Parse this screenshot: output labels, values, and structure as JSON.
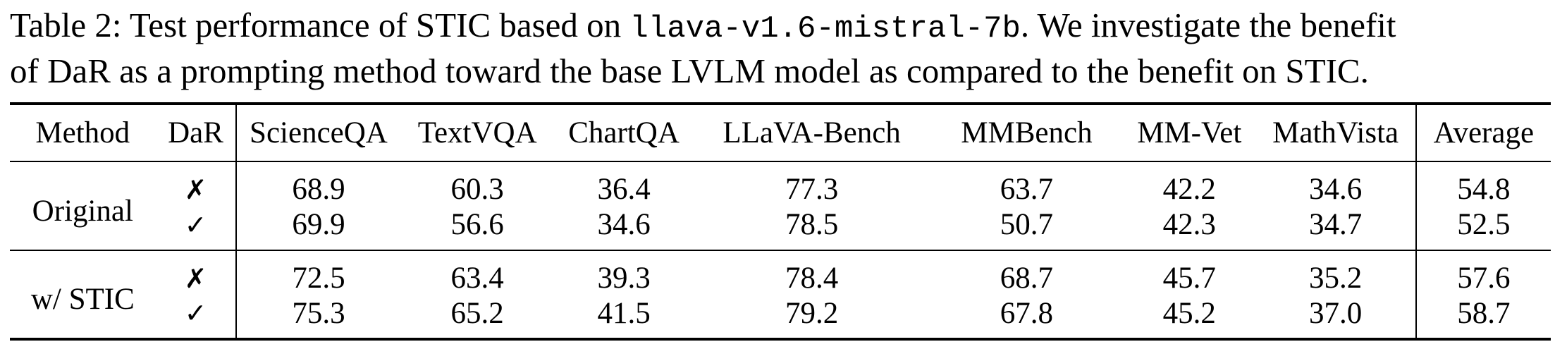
{
  "caption": {
    "label": "Table 2:",
    "text_before_model": " Test performance of STIC based on ",
    "model_name": "llava-v1.6-mistral-7b",
    "text_line1_end": ". We investigate the benefit",
    "text_line2": "of DaR as a prompting method toward the base LVLM model as compared to the benefit on STIC."
  },
  "table": {
    "headers": {
      "method": "Method",
      "dar": "DaR",
      "scienceqa": "ScienceQA",
      "textvqa": "TextVQA",
      "chartqa": "ChartQA",
      "llava_bench": "LLaVA-Bench",
      "mmbench": "MMBench",
      "mmvet": "MM-Vet",
      "mathvista": "MathVista",
      "average": "Average"
    },
    "groups": [
      {
        "method": "Original",
        "rows": [
          {
            "dar": "✗",
            "scienceqa": "68.9",
            "textvqa": "60.3",
            "chartqa": "36.4",
            "llava_bench": "77.3",
            "mmbench": "63.7",
            "mmvet": "42.2",
            "mathvista": "34.6",
            "average": "54.8"
          },
          {
            "dar": "✓",
            "scienceqa": "69.9",
            "textvqa": "56.6",
            "chartqa": "34.6",
            "llava_bench": "78.5",
            "mmbench": "50.7",
            "mmvet": "42.3",
            "mathvista": "34.7",
            "average": "52.5"
          }
        ]
      },
      {
        "method": "w/ STIC",
        "rows": [
          {
            "dar": "✗",
            "scienceqa": "72.5",
            "textvqa": "63.4",
            "chartqa": "39.3",
            "llava_bench": "78.4",
            "mmbench": "68.7",
            "mmvet": "45.7",
            "mathvista": "35.2",
            "average": "57.6"
          },
          {
            "dar": "✓",
            "scienceqa": "75.3",
            "textvqa": "65.2",
            "chartqa": "41.5",
            "llava_bench": "79.2",
            "mmbench": "67.8",
            "mmvet": "45.2",
            "mathvista": "37.0",
            "average": "58.7"
          }
        ]
      }
    ]
  }
}
